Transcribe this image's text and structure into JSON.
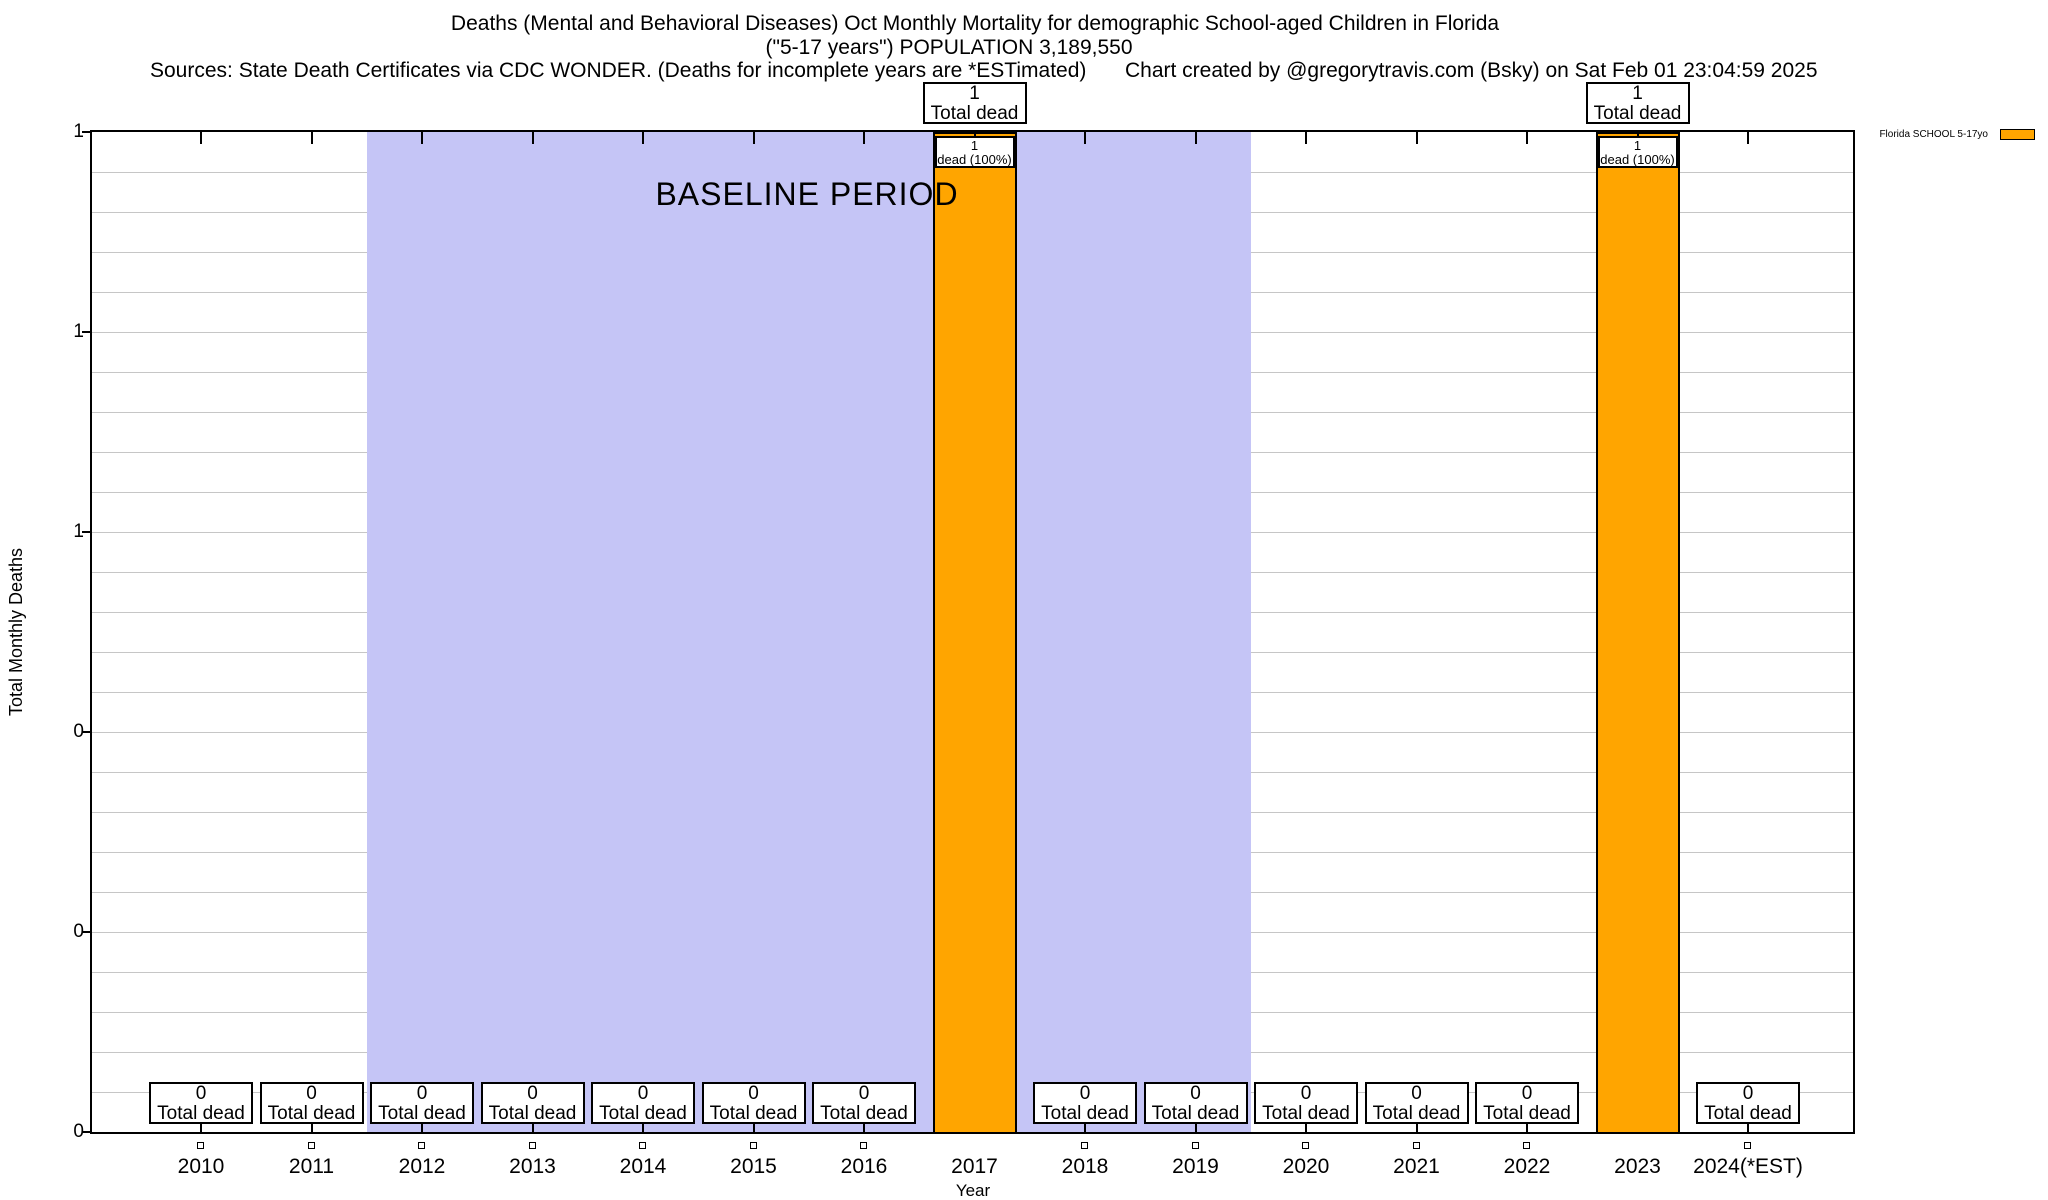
{
  "header": {
    "title_line1": "Deaths (Mental and Behavioral Diseases) Oct Monthly Mortality for demographic School-aged Children in Florida",
    "title_line2": "(\"5-17 years\") POPULATION 3,189,550",
    "sources": "Sources: State Death Certificates via CDC WONDER. (Deaths for incomplete years are *ESTimated)",
    "credit": "Chart created by @gregorytravis.com (Bsky) on Sat Feb 01 23:04:59 2025"
  },
  "legend": {
    "label": "Florida SCHOOL 5-17yo",
    "swatch_color": "#ffa500"
  },
  "chart_data": {
    "type": "bar",
    "title": "Deaths (Mental and Behavioral Diseases) Oct Monthly Mortality for demographic School-aged Children in Florida (\"5-17 years\") POPULATION 3,189,550",
    "categories": [
      "2010",
      "2011",
      "2012",
      "2013",
      "2014",
      "2015",
      "2016",
      "2017",
      "2018",
      "2019",
      "2020",
      "2021",
      "2022",
      "2023",
      "2024(*EST)"
    ],
    "series": [
      {
        "name": "Florida SCHOOL 5-17yo",
        "values": [
          0,
          0,
          0,
          0,
          0,
          0,
          0,
          1,
          0,
          0,
          0,
          0,
          0,
          1,
          0
        ]
      }
    ],
    "bar_color": "#ffa500",
    "xlabel": "Year",
    "ylabel": "Total Monthly Deaths",
    "ylim": [
      0,
      1
    ],
    "ytick_values": [
      0,
      0.2,
      0.4,
      0.6,
      0.8,
      1.0
    ],
    "ytick_labels_bottom_to_top": [
      "0",
      "0",
      "0",
      "1",
      "1",
      "1"
    ],
    "minor_gridlines_per_major": 5,
    "grid": "horizontal",
    "legend_position": "top-right",
    "baseline_period": {
      "label": "BASELINE PERIOD",
      "start_category": "2012",
      "end_category": "2019",
      "fill_color": "#c5c5f6"
    },
    "annotations": {
      "zero_year_box_line2": "Total dead",
      "bar_year_top_box_line2": "Total dead",
      "bar_year_inbar_box_line2": "dead (100%)",
      "bar_year_top_box_value": "1",
      "zero_year_box_value": "0"
    }
  }
}
